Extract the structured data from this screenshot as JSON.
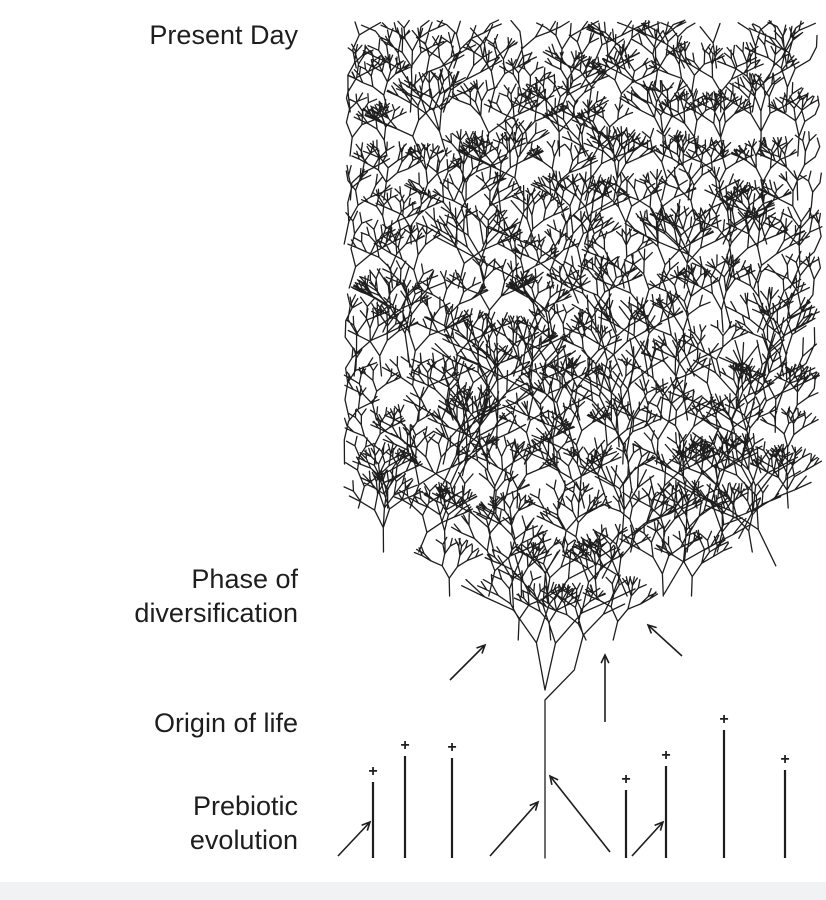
{
  "labels": {
    "present_day": "Present Day",
    "phase_line1": "Phase of",
    "phase_line2": "diversification",
    "origin": "Origin of life",
    "prebiotic_line1": "Prebiotic",
    "prebiotic_line2": "evolution"
  },
  "extinction_marker": "+",
  "colors": {
    "ink": "#1e1e1e",
    "background": "#ffffff",
    "footer_band": "#f1f2f4"
  }
}
